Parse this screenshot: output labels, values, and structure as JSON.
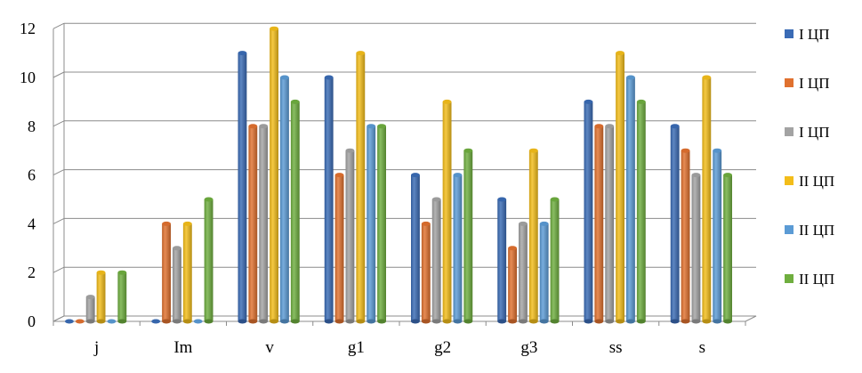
{
  "chart_data": {
    "type": "bar",
    "style": "3d-clustered-column",
    "categories": [
      "j",
      "Im",
      "v",
      "g1",
      "g2",
      "g3",
      "ss",
      "s"
    ],
    "ylim": [
      0,
      12
    ],
    "yticks": [
      "0",
      "2",
      "4",
      "6",
      "8",
      "10",
      "12"
    ],
    "grid": true,
    "legend_position": "right",
    "series": [
      {
        "name": "I ЦП",
        "color": "#3a6bb5",
        "values": [
          0,
          0,
          11,
          10,
          6,
          5,
          9,
          8
        ]
      },
      {
        "name": "I ЦП",
        "color": "#e0712f",
        "values": [
          0,
          4,
          8,
          6,
          4,
          3,
          8,
          7
        ]
      },
      {
        "name": "I ЦП",
        "color": "#a3a3a3",
        "values": [
          1,
          3,
          8,
          7,
          5,
          4,
          8,
          6
        ]
      },
      {
        "name": "II ЦП",
        "color": "#f3bd1a",
        "values": [
          2,
          4,
          12,
          11,
          9,
          7,
          11,
          10
        ]
      },
      {
        "name": "II ЦП",
        "color": "#5b9bd5",
        "values": [
          0,
          0,
          10,
          8,
          6,
          4,
          10,
          7
        ]
      },
      {
        "name": "II ЦП",
        "color": "#6fae3f",
        "values": [
          2,
          5,
          9,
          8,
          7,
          5,
          9,
          6
        ]
      }
    ]
  }
}
